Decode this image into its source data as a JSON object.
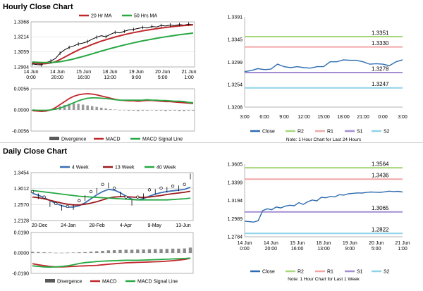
{
  "hourly_section": {
    "title": "Hourly Close Chart"
  },
  "daily_section": {
    "title": "Daily Close Chart"
  },
  "chart_data": [
    {
      "id": "hourly_price",
      "type": "line",
      "title": "",
      "x_ticks": [
        "14 Jun\n0:00",
        "14 Jun\n20:00",
        "15 Jun\n16:00",
        "18 Jun\n13:00",
        "19 Jun\n9:00",
        "20 Jun\n5:00",
        "21 Jun\n1:00"
      ],
      "y_ticks": [
        "1.3368",
        "1.3214",
        "1.3059",
        "1.2904"
      ],
      "ylim": [
        1.2904,
        1.3368
      ],
      "legend": [
        "20 Hr MA",
        "50 Hrs MA"
      ],
      "series": [
        {
          "name": "Price",
          "color": "#000000",
          "values": [
            1.2935,
            1.2928,
            1.2925,
            1.295,
            1.2965,
            1.299,
            1.3045,
            1.308,
            1.3105,
            1.312,
            1.314,
            1.315,
            1.3165,
            1.319,
            1.321,
            1.3225,
            1.3215,
            1.324,
            1.326,
            1.3255,
            1.327,
            1.3285,
            1.329,
            1.33,
            1.331,
            1.3305,
            1.332,
            1.3315,
            1.333,
            1.3325,
            1.3335,
            1.333,
            1.334,
            1.3335,
            1.3345,
            1.334
          ]
        },
        {
          "name": "20 Hr MA",
          "color": "#c0272d",
          "values": [
            1.2945,
            1.294,
            1.2936,
            1.2938,
            1.2945,
            1.2958,
            1.298,
            1.3005,
            1.303,
            1.3055,
            1.3078,
            1.3098,
            1.3116,
            1.3135,
            1.3153,
            1.317,
            1.3184,
            1.3198,
            1.3212,
            1.3224,
            1.3236,
            1.3247,
            1.3257,
            1.3266,
            1.3275,
            1.3283,
            1.329,
            1.3297,
            1.3304,
            1.331,
            1.3316,
            1.3321,
            1.3326,
            1.333,
            1.3334,
            1.3337
          ]
        },
        {
          "name": "50 Hrs MA",
          "color": "#27a843",
          "values": [
            1.2955,
            1.2952,
            1.295,
            1.2949,
            1.295,
            1.2953,
            1.2958,
            1.2966,
            1.2976,
            1.2987,
            1.2999,
            1.3012,
            1.3025,
            1.3039,
            1.3053,
            1.3067,
            1.308,
            1.3093,
            1.3106,
            1.3118,
            1.313,
            1.3141,
            1.3152,
            1.3162,
            1.3172,
            1.3181,
            1.319,
            1.3198,
            1.3206,
            1.3214,
            1.3221,
            1.3228,
            1.3235,
            1.3241,
            1.3247,
            1.3253
          ]
        }
      ]
    },
    {
      "id": "hourly_macd",
      "type": "bar",
      "x_ticks": [],
      "y_ticks": [
        "0.0056",
        "0.0000",
        "-0.0056"
      ],
      "ylim": [
        -0.0056,
        0.0056
      ],
      "legend": [
        "Divergence",
        "MACD",
        "MACD Signal Line"
      ],
      "divergence": [
        -0.0002,
        -0.0003,
        -0.0003,
        -0.0002,
        0.0,
        0.0004,
        0.0009,
        0.0013,
        0.0016,
        0.0017,
        0.0016,
        0.0014,
        0.0012,
        0.001,
        0.0008,
        0.0006,
        0.0004,
        0.0002,
        0.0001,
        0.0,
        -0.0001,
        -0.0002,
        -0.0002,
        -0.0003,
        -0.0002,
        -0.0002,
        -0.0001,
        -0.0002,
        -0.0002,
        -0.0003,
        -0.0002,
        -0.0002,
        -0.0003,
        -0.0003,
        -0.0002,
        -0.0002
      ],
      "series": [
        {
          "name": "MACD",
          "color": "#c0272d",
          "values": [
            -0.0002,
            -0.0003,
            -0.0004,
            -0.0003,
            0.0,
            0.0006,
            0.0014,
            0.0022,
            0.003,
            0.0036,
            0.004,
            0.0042,
            0.0043,
            0.0042,
            0.004,
            0.0037,
            0.0034,
            0.0031,
            0.0028,
            0.0026,
            0.0025,
            0.0024,
            0.0024,
            0.0023,
            0.0024,
            0.0025,
            0.0025,
            0.0024,
            0.0023,
            0.0022,
            0.0022,
            0.0021,
            0.002,
            0.0019,
            0.0018,
            0.0017
          ]
        },
        {
          "name": "MACD Signal Line",
          "color": "#27a843",
          "values": [
            0.0,
            -0.0001,
            -0.0001,
            -0.0001,
            0.0,
            0.0002,
            0.0005,
            0.0009,
            0.0014,
            0.0019,
            0.0024,
            0.0028,
            0.0031,
            0.0032,
            0.0032,
            0.0031,
            0.003,
            0.0029,
            0.0027,
            0.0026,
            0.0026,
            0.0026,
            0.0026,
            0.0026,
            0.0026,
            0.0027,
            0.0026,
            0.0026,
            0.0025,
            0.0025,
            0.0024,
            0.0023,
            0.0023,
            0.0022,
            0.002,
            0.0019
          ]
        }
      ]
    },
    {
      "id": "hourly_pivots",
      "type": "line",
      "x_ticks": [
        "3:00",
        "6:00",
        "9:00",
        "12:00",
        "15:00",
        "18:00",
        "21:00",
        "0:00",
        "3:00"
      ],
      "y_ticks": [
        "1.3391",
        "1.3345",
        "1.3299",
        "1.3254",
        "1.3208"
      ],
      "ylim": [
        1.3208,
        1.3391
      ],
      "levels": [
        {
          "name": "R2",
          "value": 1.3351,
          "label": "1.3351",
          "color": "#a6d77a"
        },
        {
          "name": "R1",
          "value": 1.333,
          "label": "1.3330",
          "color": "#f2a7a7"
        },
        {
          "name": "S1",
          "value": 1.3278,
          "label": "1.3278",
          "color": "#a48ed2"
        },
        {
          "name": "S2",
          "value": 1.3247,
          "label": "1.3247",
          "color": "#8fd3e8"
        }
      ],
      "series": [
        {
          "name": "Close",
          "color": "#2e6cb0",
          "values": [
            1.328,
            1.3282,
            1.3286,
            1.3284,
            1.3285,
            1.3295,
            1.329,
            1.3288,
            1.329,
            1.3288,
            1.3287,
            1.329,
            1.329,
            1.33,
            1.33,
            1.3304,
            1.3303,
            1.3303,
            1.33,
            1.3295,
            1.3296,
            1.3295,
            1.3292,
            1.33,
            1.3304
          ]
        }
      ],
      "legend": [
        "Close",
        "R2",
        "R1",
        "S1",
        "S2"
      ],
      "note": "Note: 1 Hour Chart for Last 24 Hours"
    },
    {
      "id": "daily_price",
      "type": "line",
      "x_ticks": [
        "20-Dec",
        "24-Jan",
        "28-Feb",
        "4-Apr",
        "9-May",
        "13-Jun"
      ],
      "y_ticks": [
        "1.3454",
        "1.3012",
        "1.2570",
        "1.2128"
      ],
      "ylim": [
        1.2128,
        1.3454
      ],
      "legend": [
        "4 Week",
        "13 Week",
        "40 Week"
      ],
      "series": [
        {
          "name": "Price",
          "color": "#000000",
          "values": [
            1.285,
            1.28,
            1.27,
            1.258,
            1.252,
            1.248,
            1.244,
            1.25,
            1.26,
            1.275,
            1.285,
            1.295,
            1.305,
            1.31,
            1.295,
            1.285,
            1.27,
            1.262,
            1.27,
            1.28,
            1.29,
            1.292,
            1.295,
            1.298,
            1.3,
            1.302,
            1.305,
            1.335
          ]
        },
        {
          "name": "4 Week",
          "color": "#3a6fb5",
          "values": [
            1.288,
            1.283,
            1.276,
            1.268,
            1.26,
            1.254,
            1.25,
            1.25,
            1.254,
            1.262,
            1.273,
            1.284,
            1.293,
            1.299,
            1.297,
            1.29,
            1.28,
            1.272,
            1.27,
            1.274,
            1.28,
            1.286,
            1.29,
            1.293,
            1.295,
            1.297,
            1.299,
            1.305
          ]
        },
        {
          "name": "13 Week",
          "color": "#9b1c1c",
          "values": [
            1.278,
            1.276,
            1.273,
            1.269,
            1.265,
            1.261,
            1.258,
            1.256,
            1.256,
            1.258,
            1.261,
            1.265,
            1.27,
            1.275,
            1.278,
            1.279,
            1.279,
            1.278,
            1.277,
            1.277,
            1.278,
            1.28,
            1.282,
            1.285,
            1.287,
            1.289,
            1.291,
            1.294
          ]
        },
        {
          "name": "40 Week",
          "color": "#27a843",
          "values": [
            1.296,
            1.294,
            1.292,
            1.29,
            1.288,
            1.286,
            1.284,
            1.282,
            1.28,
            1.279,
            1.278,
            1.277,
            1.276,
            1.275,
            1.274,
            1.273,
            1.272,
            1.271,
            1.27,
            1.27,
            1.27,
            1.27,
            1.27,
            1.27,
            1.271,
            1.272,
            1.273,
            1.275
          ]
        }
      ]
    },
    {
      "id": "daily_macd",
      "type": "bar",
      "x_ticks": [],
      "y_ticks": [
        "0.0190",
        "0.0000",
        "-0.0190"
      ],
      "ylim": [
        -0.019,
        0.019
      ],
      "legend": [
        "Divergence",
        "MACD",
        "MACD Signal Line"
      ],
      "divergence": [
        0.001,
        0.0008,
        0.0006,
        0.0004,
        0.0002,
        0.0002,
        0.0003,
        0.0004,
        0.0006,
        0.0008,
        0.0012,
        0.0016,
        0.002,
        0.0024,
        0.0026,
        0.0028,
        0.003,
        0.003,
        0.0032,
        0.0032,
        0.0034,
        0.0036,
        0.0036,
        0.0038,
        0.004,
        0.004,
        0.0042,
        0.005
      ],
      "series": [
        {
          "name": "MACD",
          "color": "#c0272d",
          "values": [
            -0.01,
            -0.011,
            -0.0118,
            -0.0125,
            -0.013,
            -0.013,
            -0.0128,
            -0.0125,
            -0.0122,
            -0.012,
            -0.0118,
            -0.0115,
            -0.011,
            -0.0105,
            -0.01,
            -0.0096,
            -0.0092,
            -0.009,
            -0.0088,
            -0.0086,
            -0.0084,
            -0.0082,
            -0.008,
            -0.0076,
            -0.0072,
            -0.0066,
            -0.006,
            -0.005
          ]
        },
        {
          "name": "MACD Signal Line",
          "color": "#27a843",
          "values": [
            -0.012,
            -0.0125,
            -0.013,
            -0.0132,
            -0.013,
            -0.0126,
            -0.012,
            -0.011,
            -0.0098,
            -0.009,
            -0.0085,
            -0.008,
            -0.0076,
            -0.0074,
            -0.0072,
            -0.007,
            -0.0068,
            -0.0068,
            -0.0068,
            -0.0066,
            -0.0064,
            -0.0062,
            -0.006,
            -0.0058,
            -0.0056,
            -0.0054,
            -0.0052,
            -0.0048
          ]
        }
      ]
    },
    {
      "id": "daily_pivots",
      "type": "line",
      "x_ticks": [
        "14 Jun\n0:00",
        "14 Jun\n20:00",
        "15 Jun\n16:00",
        "18 Jun\n13:00",
        "19 Jun\n9:00",
        "20 Jun\n5:00",
        "21 Jun\n1:00"
      ],
      "y_ticks": [
        "1.3605",
        "1.3399",
        "1.3194",
        "1.2989",
        "1.2784"
      ],
      "ylim": [
        1.2784,
        1.3605
      ],
      "levels": [
        {
          "name": "R2",
          "value": 1.3564,
          "label": "1.3564",
          "color": "#a6d77a"
        },
        {
          "name": "R1",
          "value": 1.3436,
          "label": "1.3436",
          "color": "#f2a7a7"
        },
        {
          "name": "S1",
          "value": 1.3065,
          "label": "1.3065",
          "color": "#a48ed2"
        },
        {
          "name": "S2",
          "value": 1.2822,
          "label": "1.2822",
          "color": "#8fd3e8"
        }
      ],
      "series": [
        {
          "name": "Close",
          "color": "#2e6cb0",
          "values": [
            1.296,
            1.2955,
            1.295,
            1.2965,
            1.308,
            1.31,
            1.309,
            1.312,
            1.311,
            1.313,
            1.314,
            1.3135,
            1.317,
            1.315,
            1.318,
            1.32,
            1.319,
            1.323,
            1.3225,
            1.324,
            1.3235,
            1.326,
            1.3255,
            1.327,
            1.3275,
            1.328,
            1.3278,
            1.3285,
            1.329,
            1.3288,
            1.3286,
            1.3292,
            1.33,
            1.3295,
            1.3298,
            1.329
          ]
        }
      ],
      "legend": [
        "Close",
        "R2",
        "R1",
        "S1",
        "S2"
      ],
      "note": "Note: 1 Hour Chart for Last 1 Week"
    }
  ]
}
